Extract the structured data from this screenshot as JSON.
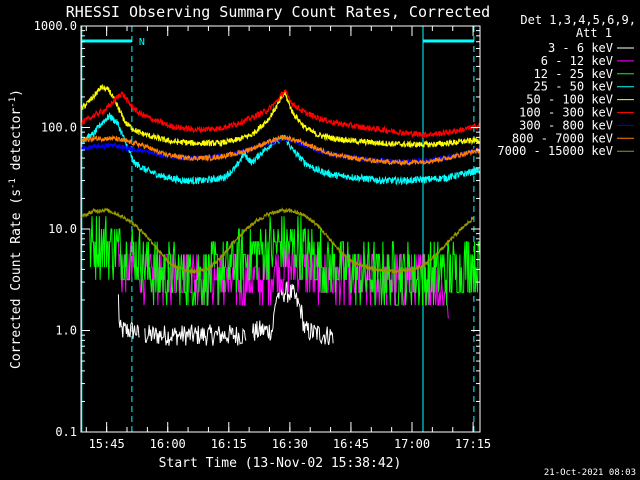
{
  "chart_data": {
    "type": "line",
    "title": "RHESSI Observing Summary Count Rates, Corrected",
    "xlabel": "Start Time (13-Nov-02 15:38:42)",
    "ylabel_main": "Corrected Count Rate (s",
    "ylabel_sup1": "-1",
    "ylabel_mid": " detector",
    "ylabel_sup2": "-1",
    "ylabel_end": ")",
    "yscale": "log",
    "ylim": [
      0.1,
      1000
    ],
    "x_unit": "minutes since 15:38:42",
    "xlim": [
      0,
      98
    ],
    "x_ticks": [
      {
        "t": 6.3,
        "label": "15:45"
      },
      {
        "t": 21.3,
        "label": "16:00"
      },
      {
        "t": 36.3,
        "label": "16:15"
      },
      {
        "t": 51.3,
        "label": "16:30"
      },
      {
        "t": 66.3,
        "label": "16:45"
      },
      {
        "t": 81.3,
        "label": "17:00"
      },
      {
        "t": 96.3,
        "label": "17:15"
      }
    ],
    "y_ticks": [
      {
        "v": 0.1,
        "label": "0.1"
      },
      {
        "v": 1,
        "label": "1.0"
      },
      {
        "v": 10,
        "label": "10.0"
      },
      {
        "v": 100,
        "label": "100.0"
      },
      {
        "v": 1000,
        "label": "1000.0"
      }
    ],
    "legend_header": [
      "Det 1,3,4,5,6,9,",
      "Att 1"
    ],
    "timestamp": "21-Oct-2021 08:03",
    "night_marker_label": "N",
    "night_intervals": [
      [
        0,
        12.5
      ],
      [
        84,
        96.5
      ]
    ],
    "vlines_solid": [
      0.2,
      84
    ],
    "vlines_dashed": [
      12.5,
      96.5
    ],
    "series": [
      {
        "name": "3 - 6 keV",
        "color": "#ffffff",
        "points": [
          [
            9,
            3.2
          ],
          [
            9.5,
            1.0
          ],
          [
            11,
            1.0
          ],
          [
            12,
            1.0
          ],
          [
            13.5,
            1.0
          ],
          [
            14,
            0.9
          ],
          [
            16,
            0.9
          ],
          [
            22,
            0.9
          ],
          [
            40,
            0.9
          ],
          [
            44,
            1.0
          ],
          [
            45,
            1.0
          ],
          [
            47,
            1.0
          ],
          [
            48,
            2.2
          ],
          [
            50,
            2.4
          ],
          [
            52,
            2.3
          ],
          [
            54,
            1.6
          ],
          [
            55,
            1.0
          ],
          [
            60,
            0.9
          ],
          [
            62,
            0.9
          ]
        ],
        "gaps": [
          [
            14.5,
            15.5
          ],
          [
            40.5,
            42
          ],
          [
            62,
            98
          ]
        ]
      },
      {
        "name": "6 - 12 keV",
        "color": "#ff00ff",
        "points": [
          [
            9,
            4.5
          ],
          [
            12,
            4.0
          ],
          [
            16,
            3.5
          ],
          [
            21,
            3.5
          ],
          [
            27,
            3.8
          ],
          [
            32,
            3.2
          ],
          [
            38,
            3.0
          ],
          [
            42,
            3.0
          ],
          [
            45,
            3.3
          ],
          [
            48,
            4.0
          ],
          [
            51,
            4.6
          ],
          [
            54,
            4.2
          ],
          [
            57,
            3.5
          ],
          [
            60,
            3.2
          ],
          [
            66,
            3.0
          ],
          [
            72,
            3.0
          ],
          [
            78,
            3.3
          ],
          [
            82,
            3.2
          ],
          [
            85,
            3.0
          ],
          [
            88,
            2.8
          ],
          [
            90,
            2.2
          ],
          [
            90.5,
            1.0
          ]
        ]
      },
      {
        "name": "12 - 25 keV",
        "color": "#00ff00",
        "points": [
          [
            2,
            6.5
          ],
          [
            5,
            7.2
          ],
          [
            8,
            6.8
          ],
          [
            12,
            5.5
          ],
          [
            15,
            5.0
          ],
          [
            17,
            3.8
          ],
          [
            20,
            3.6
          ],
          [
            25,
            3.4
          ],
          [
            30,
            3.5
          ],
          [
            35,
            4.0
          ],
          [
            38,
            4.5
          ],
          [
            42,
            5.5
          ],
          [
            46,
            6.5
          ],
          [
            50,
            7.0
          ],
          [
            54,
            6.5
          ],
          [
            58,
            5.0
          ],
          [
            62,
            4.2
          ],
          [
            66,
            3.8
          ],
          [
            70,
            3.6
          ],
          [
            76,
            3.5
          ],
          [
            82,
            3.5
          ],
          [
            88,
            3.6
          ],
          [
            92,
            4.0
          ],
          [
            95,
            4.5
          ],
          [
            98,
            4.5
          ]
        ]
      },
      {
        "name": "25 - 50 keV",
        "color": "#00ffff",
        "points": [
          [
            0,
            75
          ],
          [
            3,
            85
          ],
          [
            5,
            110
          ],
          [
            7,
            130
          ],
          [
            9,
            110
          ],
          [
            11,
            70
          ],
          [
            13,
            45
          ],
          [
            16,
            38
          ],
          [
            20,
            33
          ],
          [
            25,
            30
          ],
          [
            30,
            30
          ],
          [
            35,
            32
          ],
          [
            38,
            40
          ],
          [
            40,
            55
          ],
          [
            42,
            45
          ],
          [
            44,
            55
          ],
          [
            47,
            70
          ],
          [
            50,
            80
          ],
          [
            52,
            60
          ],
          [
            55,
            45
          ],
          [
            58,
            38
          ],
          [
            62,
            34
          ],
          [
            68,
            32
          ],
          [
            74,
            30
          ],
          [
            80,
            30
          ],
          [
            86,
            31
          ],
          [
            90,
            32
          ],
          [
            94,
            35
          ],
          [
            98,
            38
          ]
        ]
      },
      {
        "name": "50 - 100 keV",
        "color": "#ffff00",
        "points": [
          [
            0,
            150
          ],
          [
            3,
            200
          ],
          [
            5,
            250
          ],
          [
            7,
            230
          ],
          [
            9,
            160
          ],
          [
            11,
            110
          ],
          [
            14,
            90
          ],
          [
            18,
            80
          ],
          [
            22,
            73
          ],
          [
            28,
            70
          ],
          [
            34,
            70
          ],
          [
            38,
            75
          ],
          [
            42,
            85
          ],
          [
            46,
            120
          ],
          [
            48,
            160
          ],
          [
            50,
            220
          ],
          [
            52,
            140
          ],
          [
            55,
            100
          ],
          [
            58,
            85
          ],
          [
            62,
            78
          ],
          [
            68,
            73
          ],
          [
            74,
            70
          ],
          [
            80,
            68
          ],
          [
            86,
            68
          ],
          [
            90,
            70
          ],
          [
            94,
            73
          ],
          [
            98,
            75
          ]
        ]
      },
      {
        "name": "100 - 300 keV",
        "color": "#ff0000",
        "points": [
          [
            0,
            110
          ],
          [
            3,
            130
          ],
          [
            6,
            150
          ],
          [
            8,
            180
          ],
          [
            10,
            220
          ],
          [
            12,
            170
          ],
          [
            14,
            140
          ],
          [
            18,
            118
          ],
          [
            22,
            103
          ],
          [
            28,
            95
          ],
          [
            34,
            98
          ],
          [
            38,
            108
          ],
          [
            42,
            125
          ],
          [
            46,
            150
          ],
          [
            48,
            180
          ],
          [
            50,
            230
          ],
          [
            52,
            170
          ],
          [
            55,
            140
          ],
          [
            58,
            125
          ],
          [
            62,
            112
          ],
          [
            68,
            102
          ],
          [
            74,
            95
          ],
          [
            80,
            88
          ],
          [
            84,
            85
          ],
          [
            88,
            87
          ],
          [
            92,
            92
          ],
          [
            96,
            100
          ],
          [
            98,
            105
          ]
        ]
      },
      {
        "name": "300 - 800 keV",
        "color": "#0000ff",
        "points": [
          [
            0,
            62
          ],
          [
            4,
            65
          ],
          [
            8,
            67
          ],
          [
            12,
            62
          ],
          [
            16,
            58
          ],
          [
            20,
            53
          ],
          [
            26,
            50
          ],
          [
            32,
            51
          ],
          [
            38,
            56
          ],
          [
            42,
            62
          ],
          [
            46,
            70
          ],
          [
            50,
            78
          ],
          [
            54,
            70
          ],
          [
            58,
            60
          ],
          [
            62,
            54
          ],
          [
            68,
            50
          ],
          [
            74,
            47
          ],
          [
            80,
            46
          ],
          [
            86,
            48
          ],
          [
            90,
            51
          ],
          [
            94,
            55
          ],
          [
            98,
            60
          ]
        ]
      },
      {
        "name": "800 - 7000 keV",
        "color": "#ff8000",
        "points": [
          [
            0,
            75
          ],
          [
            4,
            78
          ],
          [
            8,
            78
          ],
          [
            12,
            72
          ],
          [
            16,
            65
          ],
          [
            20,
            55
          ],
          [
            26,
            50
          ],
          [
            32,
            50
          ],
          [
            38,
            55
          ],
          [
            42,
            62
          ],
          [
            46,
            72
          ],
          [
            50,
            80
          ],
          [
            54,
            72
          ],
          [
            58,
            62
          ],
          [
            62,
            54
          ],
          [
            68,
            49
          ],
          [
            74,
            46
          ],
          [
            80,
            45
          ],
          [
            86,
            47
          ],
          [
            90,
            50
          ],
          [
            94,
            55
          ],
          [
            98,
            60
          ]
        ]
      },
      {
        "name": "7000 - 15000 keV",
        "color": "#999900",
        "points": [
          [
            0,
            13
          ],
          [
            3,
            15
          ],
          [
            6,
            15.5
          ],
          [
            9,
            14
          ],
          [
            12,
            12
          ],
          [
            15,
            9.5
          ],
          [
            18,
            7
          ],
          [
            20,
            5.5
          ],
          [
            22,
            4.5
          ],
          [
            25,
            4.0
          ],
          [
            28,
            3.8
          ],
          [
            31,
            4.0
          ],
          [
            34,
            5.0
          ],
          [
            37,
            7
          ],
          [
            40,
            9.5
          ],
          [
            43,
            12
          ],
          [
            46,
            14
          ],
          [
            49,
            15.2
          ],
          [
            52,
            15
          ],
          [
            55,
            13.5
          ],
          [
            58,
            11
          ],
          [
            61,
            8
          ],
          [
            64,
            5.8
          ],
          [
            67,
            4.6
          ],
          [
            72,
            4.0
          ],
          [
            78,
            3.8
          ],
          [
            82,
            4.0
          ],
          [
            85,
            4.6
          ],
          [
            88,
            6
          ],
          [
            91,
            8
          ],
          [
            94,
            10.5
          ],
          [
            96.5,
            13
          ]
        ]
      }
    ]
  }
}
